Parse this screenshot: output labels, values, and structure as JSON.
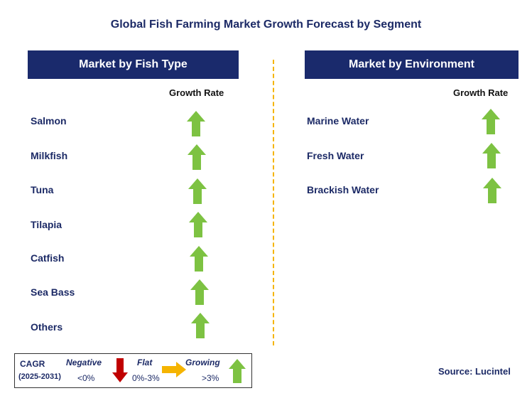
{
  "title": "Global Fish Farming Market Growth Forecast by Segment",
  "left_panel": {
    "header": "Market by Fish Type",
    "column_label": "Growth Rate",
    "rows": [
      {
        "label": "Salmon",
        "trend": "growing"
      },
      {
        "label": "Milkfish",
        "trend": "growing"
      },
      {
        "label": "Tuna",
        "trend": "growing"
      },
      {
        "label": "Tilapia",
        "trend": "growing"
      },
      {
        "label": "Catfish",
        "trend": "growing"
      },
      {
        "label": "Sea Bass",
        "trend": "growing"
      },
      {
        "label": "Others",
        "trend": "growing"
      }
    ]
  },
  "right_panel": {
    "header": "Market by Environment",
    "column_label": "Growth Rate",
    "rows": [
      {
        "label": "Marine Water",
        "trend": "growing"
      },
      {
        "label": "Fresh Water",
        "trend": "growing"
      },
      {
        "label": "Brackish Water",
        "trend": "growing"
      }
    ]
  },
  "legend": {
    "cagr_label": "CAGR",
    "period": "(2025-2031)",
    "negative_label": "Negative",
    "negative_range": "<0%",
    "flat_label": "Flat",
    "flat_range": "0%-3%",
    "growing_label": "Growing",
    "growing_range": ">3%"
  },
  "source": "Source: Lucintel",
  "colors": {
    "header_bg": "#1a2a6c",
    "growing_arrow": "#7dc242",
    "negative_arrow": "#c00000",
    "flat_arrow": "#f5b400",
    "divider": "#f5b400"
  }
}
